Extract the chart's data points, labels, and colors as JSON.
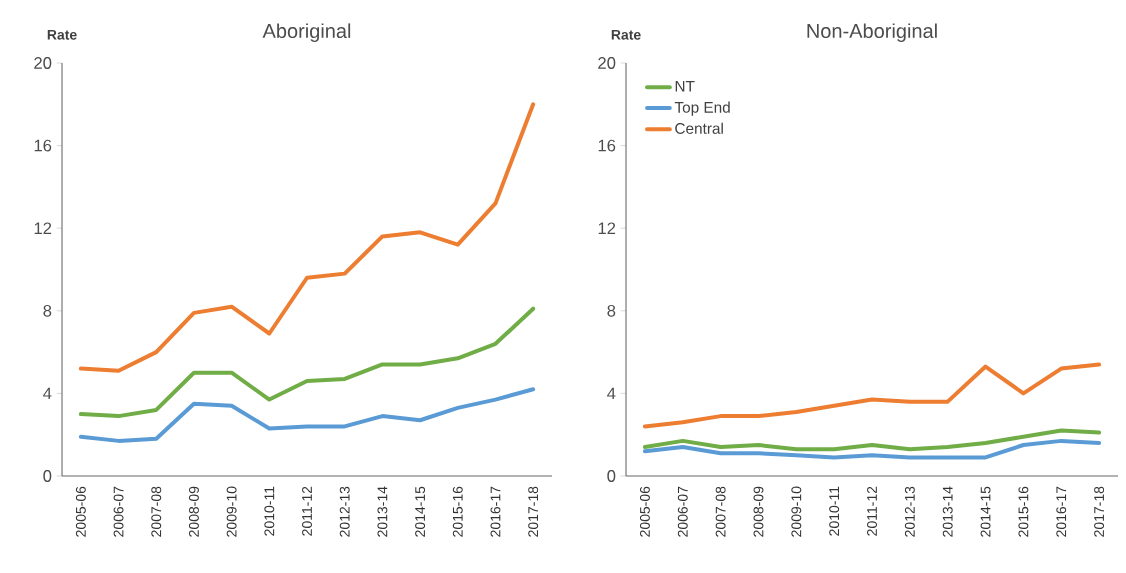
{
  "chart_data": [
    {
      "type": "line",
      "title": "Aboriginal",
      "ylabel": "Rate",
      "categories": [
        "2005-06",
        "2006-07",
        "2007-08",
        "2008-09",
        "2009-10",
        "2010-11",
        "2011-12",
        "2012-13",
        "2013-14",
        "2014-15",
        "2015-16",
        "2016-17",
        "2017-18"
      ],
      "ylim": [
        0,
        20
      ],
      "yticks": [
        0,
        4,
        8,
        12,
        16,
        20
      ],
      "grid": false,
      "legend": false,
      "marker": "none",
      "series": [
        {
          "color": "#70ad47",
          "values": [
            3.0,
            2.9,
            3.2,
            5.0,
            5.0,
            3.7,
            4.6,
            4.7,
            5.4,
            5.4,
            5.7,
            6.4,
            8.1
          ]
        },
        {
          "color": "#5b9bd5",
          "values": [
            1.9,
            1.7,
            1.8,
            3.5,
            3.4,
            2.3,
            2.4,
            2.4,
            2.9,
            2.7,
            3.3,
            3.7,
            4.2
          ]
        },
        {
          "color": "#ed7d31",
          "values": [
            5.2,
            5.1,
            6.0,
            7.9,
            8.2,
            6.9,
            9.6,
            9.8,
            11.6,
            11.8,
            11.2,
            13.2,
            18.0
          ]
        }
      ]
    },
    {
      "type": "line",
      "title": "Non-Aboriginal",
      "ylabel": "Rate",
      "categories": [
        "2005-06",
        "2006-07",
        "2007-08",
        "2008-09",
        "2009-10",
        "2010-11",
        "2011-12",
        "2012-13",
        "2013-14",
        "2014-15",
        "2015-16",
        "2016-17",
        "2017-18"
      ],
      "ylim": [
        0,
        20
      ],
      "yticks": [
        0,
        4,
        8,
        12,
        16,
        20
      ],
      "grid": false,
      "legend": "top left",
      "marker": "none",
      "series": [
        {
          "name": "NT",
          "color": "#70ad47",
          "values": [
            1.4,
            1.7,
            1.4,
            1.5,
            1.3,
            1.3,
            1.5,
            1.3,
            1.4,
            1.6,
            1.9,
            2.2,
            2.1
          ]
        },
        {
          "name": "Top End",
          "color": "#5b9bd5",
          "values": [
            1.2,
            1.4,
            1.1,
            1.1,
            1.0,
            0.9,
            1.0,
            0.9,
            0.9,
            0.9,
            1.5,
            1.7,
            1.6
          ]
        },
        {
          "name": "Central",
          "color": "#ed7d31",
          "values": [
            2.4,
            2.6,
            2.9,
            2.9,
            3.1,
            3.4,
            3.7,
            3.6,
            3.6,
            5.3,
            4.0,
            5.2,
            5.4
          ]
        }
      ]
    }
  ]
}
